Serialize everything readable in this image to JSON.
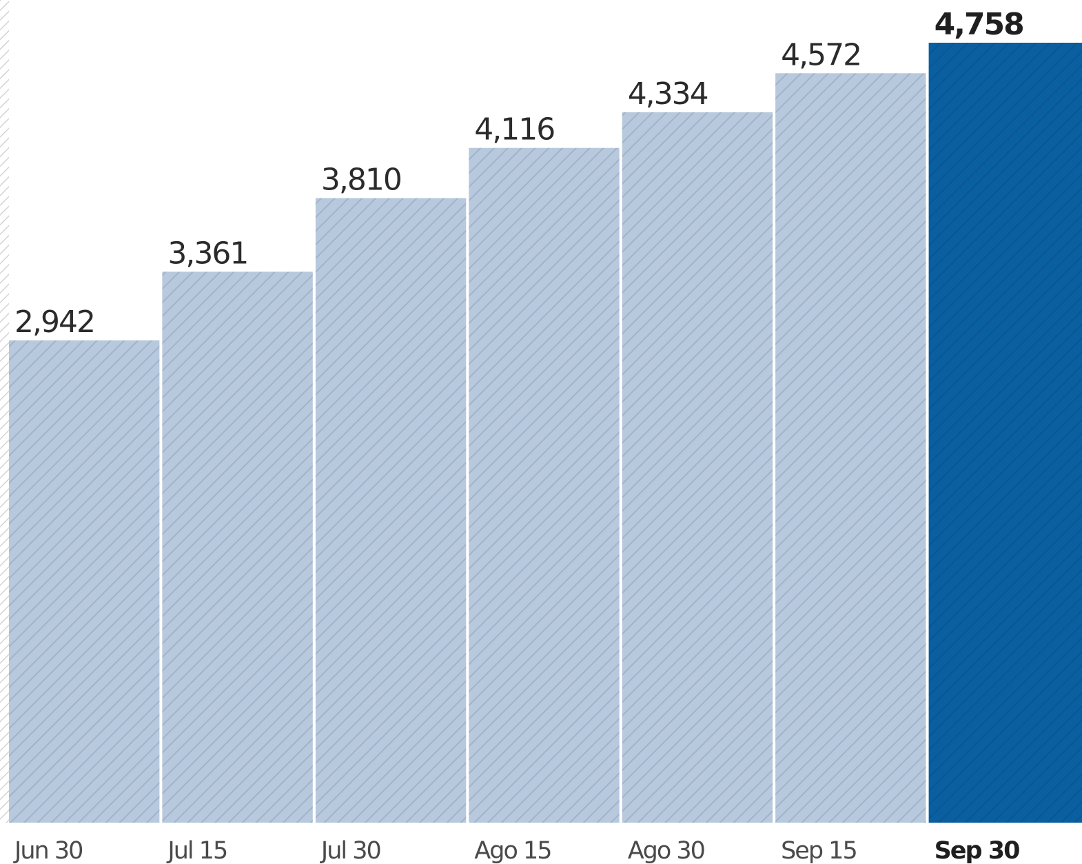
{
  "chart_data": {
    "type": "bar",
    "categories": [
      "Jun 30",
      "Jul 15",
      "Jul 30",
      "Ago 15",
      "Ago 30",
      "Sep 15",
      "Sep 30"
    ],
    "values": [
      2942,
      3361,
      3810,
      4116,
      4334,
      4572,
      4758
    ],
    "value_labels": [
      "2,942",
      "3,361",
      "3,810",
      "4,116",
      "4,334",
      "4,572",
      "4,758"
    ],
    "highlight_index": 6,
    "title": "",
    "xlabel": "",
    "ylabel": "",
    "grid": false,
    "legend": "none",
    "colors": {
      "bar": "#b8c9dd",
      "hatch": "#9fb4cc",
      "highlight_bar": "#0a5fa0",
      "highlight_hatch": "#0a5693",
      "separator": "#ffffff",
      "left_axis_hatch": "#d4d4d4"
    }
  }
}
